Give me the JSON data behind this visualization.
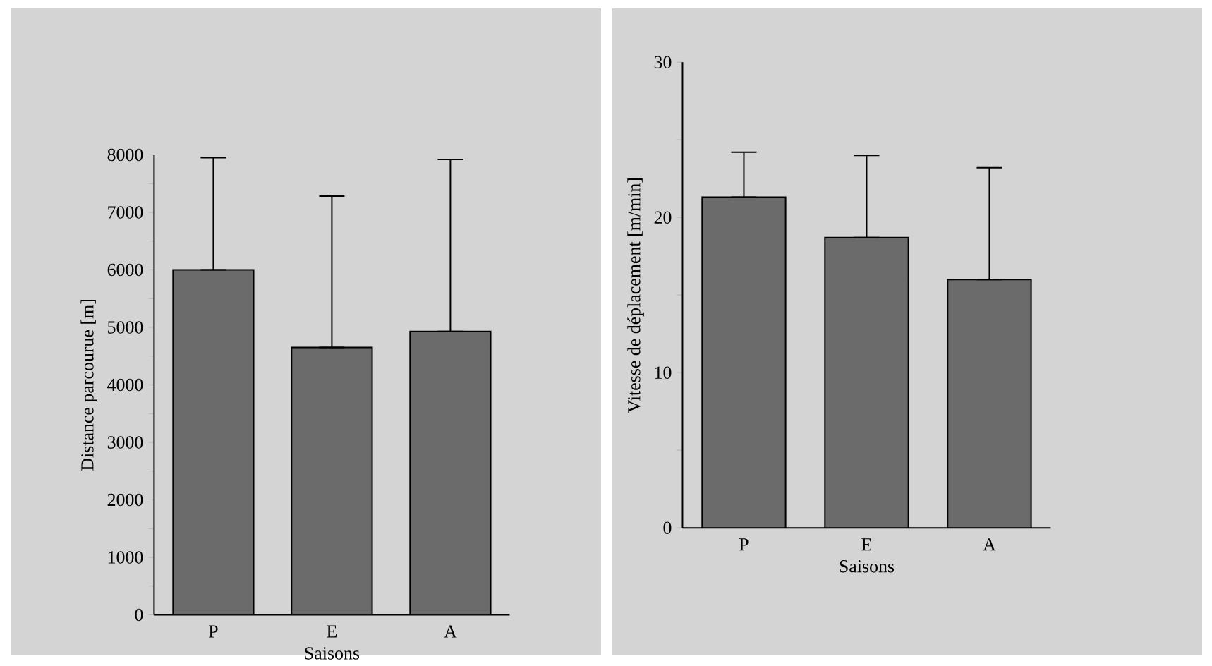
{
  "chart_data": [
    {
      "type": "bar",
      "categories": [
        "P",
        "E",
        "A"
      ],
      "values": [
        6000,
        4650,
        4930
      ],
      "color": "#6b6b6b",
      "errors": [
        [
          6000,
          7950
        ],
        [
          4650,
          7280
        ],
        [
          4930,
          7920
        ]
      ],
      "xlabel": "Saisons",
      "ylabel": "Distance parcourue [m]",
      "ylim": [
        0,
        8000
      ],
      "yticks": [
        0,
        {
          "value": 500,
          "label": null
        },
        1000,
        {
          "value": 1500,
          "label": null
        },
        2000,
        {
          "value": 2500,
          "label": null
        },
        3000,
        {
          "value": 3500,
          "label": null
        },
        4000,
        {
          "value": 4500,
          "label": null
        },
        5000,
        {
          "value": 5500,
          "label": null
        },
        6000,
        {
          "value": 6500,
          "label": null
        },
        7000,
        {
          "value": 7500,
          "label": null
        },
        8000
      ]
    },
    {
      "type": "bar",
      "categories": [
        "P",
        "E",
        "A"
      ],
      "values": [
        21.3,
        18.7,
        16.0
      ],
      "color": "#6b6b6b",
      "errors": [
        [
          21.3,
          24.2
        ],
        [
          18.7,
          24.0
        ],
        [
          16.0,
          23.2
        ]
      ],
      "xlabel": "Saisons",
      "ylabel": "Vitesse de déplacement [m/min]",
      "ylim": [
        0,
        30
      ],
      "yticks": [
        0,
        {
          "value": 5,
          "label": null
        },
        10,
        {
          "value": 15,
          "label": null
        },
        20,
        {
          "value": 25,
          "label": null
        },
        30
      ]
    }
  ]
}
